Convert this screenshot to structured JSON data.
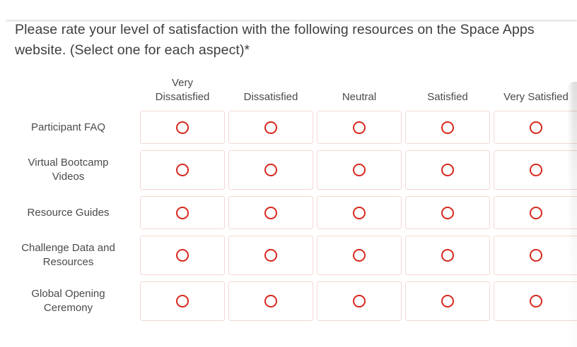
{
  "question": {
    "text": "Please rate your level of satisfaction with the following resources on the Space Apps website. (Select one for each aspect)*"
  },
  "matrix": {
    "columns": [
      "Very Dissatisfied",
      "Dissatisfied",
      "Neutral",
      "Satisfied",
      "Very Satisfied"
    ],
    "rows": [
      "Participant FAQ",
      "Virtual Bootcamp Videos",
      "Resource Guides",
      "Challenge Data and Resources",
      "Global Opening Ceremony"
    ],
    "selected": null
  },
  "colors": {
    "radio_ring": "#d7271d",
    "cell_border": "#f4d9d3",
    "question_text": "#3e3e3e",
    "label_text": "#4a4a4a"
  }
}
